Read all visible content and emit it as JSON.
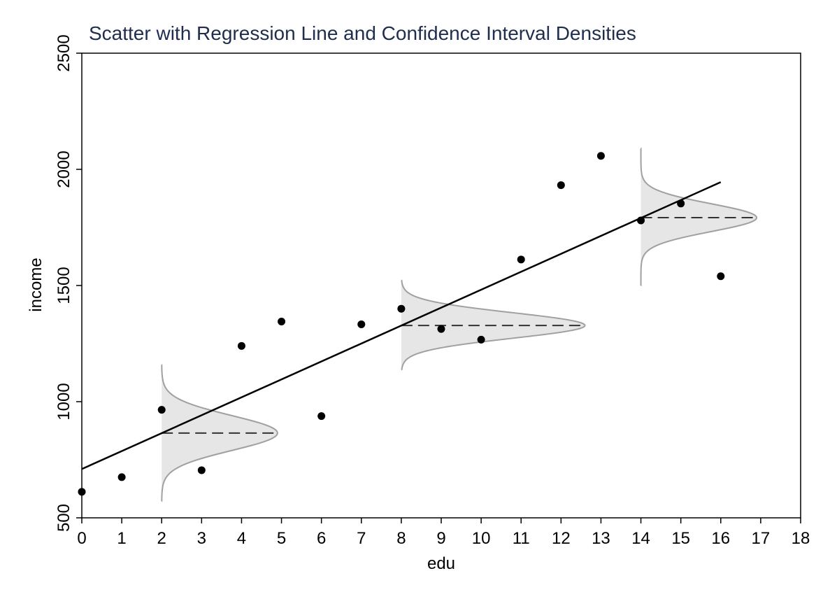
{
  "chart_data": {
    "type": "scatter",
    "title": "Scatter with Regression Line and Confidence Interval Densities",
    "xlabel": "edu",
    "ylabel": "income",
    "xlim": [
      0,
      18
    ],
    "ylim": [
      500,
      2500
    ],
    "xticks": [
      "0",
      "1",
      "2",
      "3",
      "4",
      "5",
      "6",
      "7",
      "8",
      "9",
      "10",
      "11",
      "12",
      "13",
      "14",
      "15",
      "16",
      "17",
      "18"
    ],
    "yticks": [
      "500",
      "1000",
      "1500",
      "2000",
      "2500"
    ],
    "points": [
      {
        "x": 0,
        "y": 612
      },
      {
        "x": 1,
        "y": 675
      },
      {
        "x": 2,
        "y": 965
      },
      {
        "x": 3,
        "y": 705
      },
      {
        "x": 4,
        "y": 1240
      },
      {
        "x": 5,
        "y": 1345
      },
      {
        "x": 6,
        "y": 938
      },
      {
        "x": 7,
        "y": 1333
      },
      {
        "x": 8,
        "y": 1400
      },
      {
        "x": 9,
        "y": 1313
      },
      {
        "x": 10,
        "y": 1267
      },
      {
        "x": 11,
        "y": 1612
      },
      {
        "x": 12,
        "y": 1932
      },
      {
        "x": 13,
        "y": 2058
      },
      {
        "x": 14,
        "y": 1780
      },
      {
        "x": 15,
        "y": 1853
      },
      {
        "x": 16,
        "y": 1540
      }
    ],
    "regression_line": {
      "x": [
        0,
        16
      ],
      "y": [
        710,
        1945
      ]
    },
    "densities": [
      {
        "x": 2,
        "mean": 865,
        "sd": 75,
        "peak_width": 2.9,
        "range": [
          572,
          1158
        ]
      },
      {
        "x": 8,
        "mean": 1328,
        "sd": 55,
        "peak_width": 4.6,
        "range": [
          1138,
          1522
        ]
      },
      {
        "x": 14,
        "mean": 1792,
        "sd": 60,
        "peak_width": 2.9,
        "range": [
          1500,
          2088
        ]
      }
    ],
    "colors": {
      "point": "#000000",
      "line": "#000000",
      "density_fill": "#e6e6e6",
      "density_stroke": "#a0a0a0",
      "mean_dash": "#333333",
      "title": "#1f2d4e"
    }
  }
}
